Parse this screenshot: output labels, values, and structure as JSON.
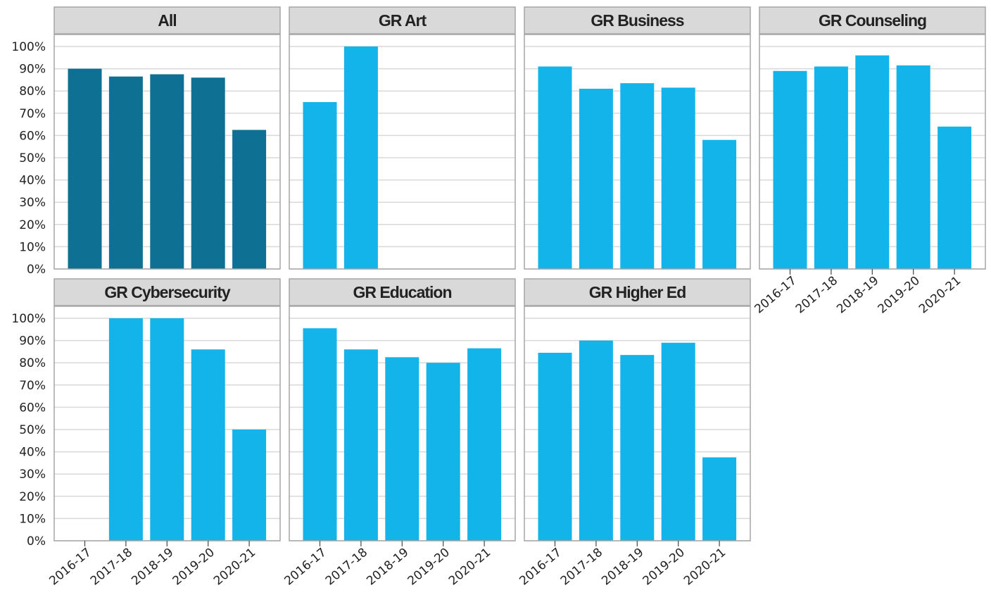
{
  "chart_data": {
    "type": "bar",
    "layout": "small-multiples",
    "grid": true,
    "legend": "none",
    "colors": {
      "all": "#0e7092",
      "program": "#12b4ea",
      "header_bg": "#d9d9d9",
      "grid": "#d9d9d9",
      "border": "#a6a6a6"
    },
    "categories": [
      "2016-17",
      "2017-18",
      "2018-19",
      "2019-20",
      "2020-21"
    ],
    "y_ticks": [
      "0%",
      "10%",
      "20%",
      "30%",
      "40%",
      "50%",
      "60%",
      "70%",
      "80%",
      "90%",
      "100%"
    ],
    "ylim": [
      0,
      100
    ],
    "panels": [
      {
        "title": "All",
        "values": [
          90,
          86.5,
          87.5,
          86,
          62.5
        ]
      },
      {
        "title": "GR Art",
        "values": [
          75,
          100,
          null,
          null,
          null
        ]
      },
      {
        "title": "GR Business",
        "values": [
          91,
          81,
          83.5,
          81.5,
          58
        ]
      },
      {
        "title": "GR Counseling",
        "values": [
          89,
          91,
          96,
          91.5,
          64
        ]
      },
      {
        "title": "GR Cybersecurity",
        "values": [
          null,
          100,
          100,
          86,
          50
        ]
      },
      {
        "title": "GR Education",
        "values": [
          95.5,
          86,
          82.5,
          80,
          86.5
        ]
      },
      {
        "title": "GR Higher Ed",
        "values": [
          84.5,
          90,
          83.5,
          89,
          37.5
        ]
      }
    ]
  }
}
